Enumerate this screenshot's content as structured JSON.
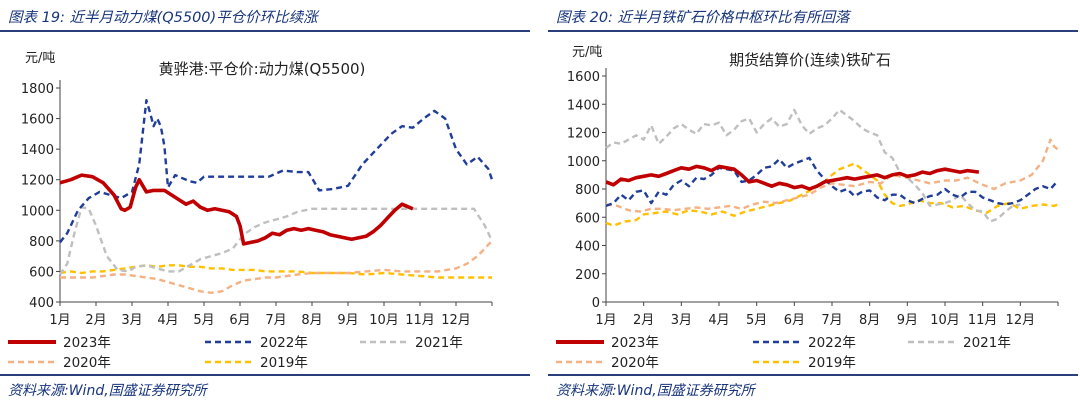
{
  "colors": {
    "s2023": "#c00000",
    "s2022": "#1f3d99",
    "s2021": "#bfbfbf",
    "s2020": "#f4b183",
    "s2019": "#ffc000",
    "title": "#17357c"
  },
  "left": {
    "fig_title": "图表 19:  近半月动力煤(Q5500)平仓价环比续涨",
    "source": "资料来源:Wind,国盛证券研究所"
  },
  "right": {
    "fig_title": "图表 20:  近半月铁矿石价格中枢环比有所回落",
    "source": "资料来源:Wind,国盛证券研究所"
  },
  "chart_data": [
    {
      "type": "line",
      "title": "黄骅港:平仓价:动力煤(Q5500)",
      "ylabel": "元/吨",
      "x_ticks": [
        "1月",
        "2月",
        "3月",
        "4月",
        "5月",
        "6月",
        "7月",
        "8月",
        "9月",
        "10月",
        "11月",
        "12月"
      ],
      "x_range": [
        1,
        13
      ],
      "ylim": [
        400,
        1800
      ],
      "y_ticks": [
        400,
        600,
        800,
        1000,
        1200,
        1400,
        1600,
        1800
      ],
      "legend_placement": "bottom",
      "series": [
        {
          "name": "2023年",
          "key": "s2023",
          "dash": false,
          "x": [
            1.0,
            1.3,
            1.6,
            1.9,
            2.2,
            2.5,
            2.7,
            2.8,
            2.95,
            3.1,
            3.2,
            3.4,
            3.6,
            3.9,
            4.1,
            4.3,
            4.5,
            4.7,
            4.9,
            5.1,
            5.3,
            5.5,
            5.7,
            5.9,
            6.0,
            6.1,
            6.3,
            6.5,
            6.7,
            6.9,
            7.1,
            7.3,
            7.5,
            7.7,
            7.9,
            8.1,
            8.3,
            8.5,
            8.7,
            8.9,
            9.1,
            9.3,
            9.5,
            9.7,
            9.9,
            10.1,
            10.3,
            10.5,
            10.8
          ],
          "y": [
            1180,
            1200,
            1230,
            1220,
            1180,
            1100,
            1010,
            1000,
            1020,
            1150,
            1200,
            1120,
            1130,
            1130,
            1100,
            1070,
            1040,
            1060,
            1020,
            1000,
            1010,
            1000,
            990,
            960,
            900,
            780,
            790,
            800,
            820,
            850,
            840,
            870,
            880,
            870,
            880,
            870,
            860,
            840,
            830,
            820,
            810,
            820,
            830,
            860,
            900,
            950,
            1000,
            1040,
            1010
          ]
        },
        {
          "name": "2022年",
          "key": "s2022",
          "dash": true,
          "x": [
            1.0,
            1.2,
            1.5,
            1.8,
            2.1,
            2.4,
            2.7,
            3.0,
            3.2,
            3.4,
            3.5,
            3.6,
            3.7,
            3.8,
            3.9,
            4.0,
            4.2,
            4.4,
            4.6,
            4.8,
            5.0,
            5.3,
            5.6,
            6.0,
            6.4,
            6.8,
            7.2,
            7.6,
            7.9,
            8.2,
            8.6,
            9.0,
            9.4,
            9.8,
            10.2,
            10.5,
            10.8,
            11.1,
            11.4,
            11.7,
            12.0,
            12.3,
            12.6,
            12.9,
            13.0
          ],
          "y": [
            790,
            850,
            1000,
            1080,
            1120,
            1100,
            1080,
            1120,
            1300,
            1720,
            1640,
            1550,
            1600,
            1550,
            1420,
            1150,
            1230,
            1210,
            1190,
            1180,
            1220,
            1220,
            1220,
            1220,
            1220,
            1220,
            1260,
            1250,
            1250,
            1130,
            1140,
            1160,
            1300,
            1400,
            1500,
            1550,
            1540,
            1600,
            1650,
            1600,
            1400,
            1300,
            1350,
            1270,
            1200
          ]
        },
        {
          "name": "2021年",
          "key": "s2021",
          "dash": true,
          "x": [
            1.0,
            1.2,
            1.4,
            1.6,
            1.8,
            2.0,
            2.3,
            2.6,
            2.9,
            3.1,
            3.4,
            3.7,
            4.0,
            4.3,
            4.6,
            4.9,
            5.2,
            5.5,
            5.8,
            6.1,
            6.4,
            6.7,
            7.0,
            7.3,
            7.6,
            8.0,
            8.5,
            9.0,
            9.5,
            10.0,
            10.5,
            11.0,
            11.5,
            12.0,
            12.5,
            12.8,
            13.0
          ],
          "y": [
            580,
            650,
            850,
            1020,
            1010,
            900,
            700,
            610,
            600,
            630,
            640,
            620,
            600,
            600,
            640,
            680,
            700,
            720,
            750,
            840,
            890,
            920,
            940,
            960,
            990,
            1010,
            1010,
            1010,
            1010,
            1010,
            1010,
            1010,
            1010,
            1010,
            1010,
            900,
            800
          ]
        },
        {
          "name": "2020年",
          "key": "s2020",
          "dash": true,
          "x": [
            1.0,
            1.3,
            1.6,
            1.9,
            2.2,
            2.5,
            2.8,
            3.1,
            3.4,
            3.7,
            4.0,
            4.3,
            4.6,
            4.9,
            5.2,
            5.5,
            5.8,
            6.1,
            6.4,
            6.7,
            7.0,
            7.3,
            7.6,
            8.0,
            8.5,
            9.0,
            9.5,
            10.0,
            10.5,
            11.0,
            11.5,
            12.0,
            12.3,
            12.6,
            12.8,
            13.0
          ],
          "y": [
            560,
            560,
            560,
            560,
            570,
            580,
            580,
            570,
            560,
            550,
            530,
            510,
            490,
            470,
            460,
            470,
            510,
            540,
            550,
            560,
            560,
            570,
            580,
            590,
            590,
            590,
            600,
            610,
            600,
            600,
            600,
            620,
            650,
            700,
            750,
            800
          ]
        },
        {
          "name": "2019年",
          "key": "s2019",
          "dash": true,
          "x": [
            1.0,
            1.3,
            1.6,
            1.9,
            2.2,
            2.5,
            2.8,
            3.1,
            3.4,
            3.7,
            4.0,
            4.3,
            4.6,
            4.9,
            5.2,
            5.5,
            5.8,
            6.1,
            6.4,
            6.7,
            7.0,
            7.3,
            7.6,
            8.0,
            8.5,
            9.0,
            9.5,
            10.0,
            10.5,
            11.0,
            11.5,
            12.0,
            12.5,
            13.0
          ],
          "y": [
            590,
            600,
            590,
            600,
            600,
            610,
            620,
            630,
            640,
            630,
            640,
            640,
            630,
            630,
            620,
            620,
            610,
            610,
            610,
            600,
            600,
            600,
            600,
            590,
            590,
            590,
            580,
            590,
            580,
            570,
            560,
            560,
            560,
            560
          ]
        }
      ]
    },
    {
      "type": "line",
      "title": "期货结算价(连续)铁矿石",
      "ylabel": "元/吨",
      "x_ticks": [
        "1月",
        "2月",
        "3月",
        "4月",
        "5月",
        "6月",
        "7月",
        "8月",
        "9月",
        "10月",
        "11月",
        "12月"
      ],
      "x_range": [
        1,
        13
      ],
      "ylim": [
        0,
        1600
      ],
      "y_ticks": [
        0,
        200,
        400,
        600,
        800,
        1000,
        1200,
        1400,
        1600
      ],
      "legend_placement": "bottom",
      "series": [
        {
          "name": "2023年",
          "key": "s2023",
          "dash": false,
          "x": [
            1.0,
            1.2,
            1.4,
            1.6,
            1.8,
            2.0,
            2.2,
            2.4,
            2.6,
            2.8,
            3.0,
            3.2,
            3.4,
            3.6,
            3.8,
            4.0,
            4.2,
            4.4,
            4.6,
            4.8,
            5.0,
            5.2,
            5.4,
            5.6,
            5.8,
            6.0,
            6.2,
            6.4,
            6.6,
            6.8,
            7.0,
            7.2,
            7.4,
            7.6,
            7.8,
            8.0,
            8.2,
            8.4,
            8.6,
            8.8,
            9.0,
            9.2,
            9.4,
            9.6,
            9.8,
            10.0,
            10.2,
            10.4,
            10.6,
            10.9
          ],
          "y": [
            850,
            830,
            870,
            860,
            880,
            890,
            900,
            890,
            910,
            930,
            950,
            940,
            960,
            950,
            930,
            960,
            950,
            940,
            900,
            850,
            860,
            840,
            820,
            840,
            830,
            810,
            820,
            800,
            820,
            850,
            860,
            870,
            880,
            870,
            880,
            890,
            900,
            880,
            900,
            910,
            890,
            900,
            920,
            910,
            930,
            940,
            930,
            920,
            930,
            920
          ]
        },
        {
          "name": "2022年",
          "key": "s2022",
          "dash": true,
          "x": [
            1.0,
            1.2,
            1.4,
            1.6,
            1.8,
            2.0,
            2.2,
            2.4,
            2.6,
            2.8,
            3.0,
            3.2,
            3.4,
            3.6,
            3.8,
            4.0,
            4.2,
            4.4,
            4.6,
            4.8,
            5.0,
            5.2,
            5.4,
            5.6,
            5.8,
            6.0,
            6.2,
            6.4,
            6.6,
            6.8,
            7.0,
            7.2,
            7.4,
            7.6,
            7.8,
            8.0,
            8.2,
            8.4,
            8.6,
            8.8,
            9.0,
            9.2,
            9.4,
            9.6,
            9.8,
            10.0,
            10.2,
            10.4,
            10.6,
            10.8,
            11.0,
            11.2,
            11.4,
            11.6,
            11.8,
            12.0,
            12.2,
            12.4,
            12.6,
            12.8,
            13.0
          ],
          "y": [
            680,
            700,
            760,
            720,
            780,
            790,
            700,
            780,
            760,
            830,
            860,
            820,
            880,
            870,
            900,
            950,
            940,
            930,
            850,
            860,
            900,
            950,
            960,
            1010,
            950,
            980,
            1000,
            1020,
            930,
            870,
            820,
            780,
            800,
            750,
            780,
            790,
            740,
            720,
            760,
            760,
            720,
            700,
            730,
            750,
            760,
            800,
            760,
            740,
            780,
            780,
            740,
            720,
            700,
            690,
            700,
            720,
            760,
            800,
            820,
            800,
            860
          ]
        },
        {
          "name": "2021年",
          "key": "s2021",
          "dash": true,
          "x": [
            1.0,
            1.2,
            1.4,
            1.6,
            1.8,
            2.0,
            2.2,
            2.4,
            2.6,
            2.8,
            3.0,
            3.2,
            3.4,
            3.6,
            3.8,
            4.0,
            4.2,
            4.4,
            4.6,
            4.8,
            5.0,
            5.2,
            5.4,
            5.6,
            5.8,
            6.0,
            6.2,
            6.4,
            6.6,
            6.8,
            7.0,
            7.2,
            7.4,
            7.6,
            7.8,
            8.0,
            8.2,
            8.4,
            8.6,
            8.8,
            9.0,
            9.2,
            9.4,
            9.6,
            9.8,
            10.0,
            10.2,
            10.4,
            10.6,
            10.8,
            11.0,
            11.2,
            11.4,
            11.6,
            11.8,
            12.0
          ],
          "y": [
            1090,
            1130,
            1120,
            1150,
            1180,
            1150,
            1250,
            1120,
            1170,
            1230,
            1260,
            1220,
            1190,
            1260,
            1250,
            1270,
            1180,
            1220,
            1280,
            1300,
            1200,
            1260,
            1300,
            1240,
            1260,
            1360,
            1250,
            1190,
            1230,
            1250,
            1300,
            1360,
            1320,
            1280,
            1230,
            1200,
            1180,
            1060,
            1020,
            920,
            880,
            830,
            770,
            680,
            690,
            700,
            720,
            760,
            700,
            650,
            640,
            570,
            590,
            640,
            680,
            690
          ]
        },
        {
          "name": "2020年",
          "key": "s2020",
          "dash": true,
          "x": [
            1.0,
            1.3,
            1.6,
            1.9,
            2.2,
            2.5,
            2.8,
            3.1,
            3.4,
            3.7,
            4.0,
            4.3,
            4.6,
            4.9,
            5.2,
            5.5,
            5.8,
            6.1,
            6.4,
            6.7,
            7.0,
            7.3,
            7.6,
            8.0,
            8.3,
            8.6,
            9.0,
            9.3,
            9.6,
            10.0,
            10.3,
            10.6,
            11.0,
            11.3,
            11.6,
            12.0,
            12.3,
            12.6,
            12.8,
            12.9,
            13.0
          ],
          "y": [
            690,
            680,
            650,
            640,
            660,
            660,
            650,
            660,
            670,
            660,
            670,
            680,
            660,
            690,
            710,
            700,
            720,
            740,
            760,
            810,
            840,
            830,
            820,
            850,
            840,
            900,
            880,
            860,
            840,
            860,
            860,
            880,
            830,
            800,
            840,
            860,
            900,
            1000,
            1150,
            1100,
            1080
          ]
        },
        {
          "name": "2019年",
          "key": "s2019",
          "dash": true,
          "x": [
            1.0,
            1.2,
            1.5,
            1.8,
            2.0,
            2.3,
            2.6,
            2.9,
            3.2,
            3.5,
            3.8,
            4.1,
            4.4,
            4.7,
            5.0,
            5.3,
            5.6,
            5.9,
            6.2,
            6.5,
            6.8,
            7.0,
            7.2,
            7.4,
            7.6,
            7.8,
            8.0,
            8.2,
            8.4,
            8.6,
            8.8,
            9.0,
            9.3,
            9.6,
            9.9,
            10.2,
            10.5,
            10.8,
            11.1,
            11.4,
            11.7,
            12.0,
            12.3,
            12.6,
            12.9,
            13.0
          ],
          "y": [
            560,
            540,
            570,
            580,
            620,
            630,
            640,
            620,
            650,
            640,
            620,
            640,
            610,
            640,
            660,
            680,
            700,
            720,
            760,
            800,
            850,
            900,
            940,
            960,
            980,
            940,
            900,
            860,
            760,
            700,
            680,
            690,
            720,
            700,
            700,
            670,
            680,
            650,
            630,
            680,
            700,
            660,
            680,
            690,
            680,
            690
          ]
        }
      ]
    }
  ]
}
